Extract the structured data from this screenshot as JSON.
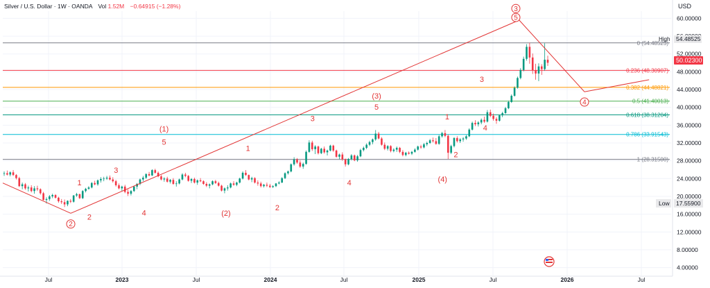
{
  "header": {
    "symbol": "Silver / U.S. Dollar · 1W · OANDA",
    "vol_label": "Vol",
    "vol_value": "1.52M",
    "change": "−0.64915 (−1.28%)"
  },
  "currency": "USD",
  "colors": {
    "up": "#089981",
    "down": "#f23645",
    "wave": "#e23434",
    "price_badge": "#f23645"
  },
  "chart_data": {
    "type": "candlestick",
    "title": "Silver / U.S. Dollar · 1W · OANDA",
    "x_ticks": [
      "Jul",
      "2023",
      "Jul",
      "2024",
      "Jul",
      "2025",
      "Jul",
      "2026",
      "Jul"
    ],
    "y_ticks": [
      "4.00000",
      "8.00000",
      "12.00000",
      "16.00000",
      "20.00000",
      "24.00000",
      "28.00000",
      "32.00000",
      "36.00000",
      "40.00000",
      "44.00000",
      "48.00000",
      "52.00000",
      "56.00000",
      "60.00000"
    ],
    "ylim": [
      3,
      61
    ],
    "last_price": "50.02300",
    "high": {
      "label": "High",
      "value": "54.48525"
    },
    "low": {
      "label": "Low",
      "value": "17.55900"
    },
    "fib_levels": [
      {
        "ratio": "0",
        "label": "0 (54.48525)",
        "value": 54.48525,
        "color": "#787b86"
      },
      {
        "ratio": "0.236",
        "label": "0.236 (48.30907)",
        "value": 48.30907,
        "color": "#f23645"
      },
      {
        "ratio": "0.382",
        "label": "0.382 (44.48821)",
        "value": 44.48821,
        "color": "#ff9800"
      },
      {
        "ratio": "0.5",
        "label": "0.5 (41.40013)",
        "value": 41.40013,
        "color": "#4caf50"
      },
      {
        "ratio": "0.618",
        "label": "0.618 (38.31204)",
        "value": 38.31204,
        "color": "#089981"
      },
      {
        "ratio": "0.786",
        "label": "0.786 (33.91543)",
        "value": 33.91543,
        "color": "#00bcd4"
      },
      {
        "ratio": "1",
        "label": "1 (28.31500)",
        "value": 28.315,
        "color": "#787b86"
      }
    ],
    "wave_labels": [
      {
        "text": "1",
        "kind": "plain",
        "t": 0.115,
        "price": 22.5
      },
      {
        "text": "2",
        "kind": "plain",
        "t": 0.13,
        "price": 14.8
      },
      {
        "text": "3",
        "kind": "plain",
        "t": 0.17,
        "price": 25.3
      },
      {
        "text": "4",
        "kind": "plain",
        "t": 0.212,
        "price": 15.7
      },
      {
        "text": "5",
        "kind": "plain",
        "t": 0.242,
        "price": 31.6
      },
      {
        "text": "(1)",
        "kind": "paren",
        "t": 0.242,
        "price": 34.6
      },
      {
        "text": "(2)",
        "kind": "paren",
        "t": 0.335,
        "price": 15.6
      },
      {
        "text": "1",
        "kind": "plain",
        "t": 0.368,
        "price": 30.2
      },
      {
        "text": "2",
        "kind": "plain",
        "t": 0.412,
        "price": 16.9
      },
      {
        "text": "3",
        "kind": "plain",
        "t": 0.465,
        "price": 36.9
      },
      {
        "text": "4",
        "kind": "plain",
        "t": 0.52,
        "price": 22.5
      },
      {
        "text": "(3)",
        "kind": "paren",
        "t": 0.561,
        "price": 42.0
      },
      {
        "text": "5",
        "kind": "plain",
        "t": 0.561,
        "price": 39.5
      },
      {
        "text": "(4)",
        "kind": "paren",
        "t": 0.66,
        "price": 23.3
      },
      {
        "text": "1",
        "kind": "plain",
        "t": 0.667,
        "price": 37.3
      },
      {
        "text": "2",
        "kind": "plain",
        "t": 0.68,
        "price": 28.8
      },
      {
        "text": "3",
        "kind": "plain",
        "t": 0.719,
        "price": 45.7
      },
      {
        "text": "4",
        "kind": "plain",
        "t": 0.724,
        "price": 34.8
      }
    ],
    "circled_labels": [
      {
        "text": "2",
        "t": 0.102,
        "price": 13.8
      },
      {
        "text": "3",
        "t": 0.77,
        "price": 62.2
      },
      {
        "text": "5",
        "t": 0.77,
        "price": 60.2
      },
      {
        "text": "4",
        "t": 0.873,
        "price": 41.2
      }
    ],
    "trendlines": [
      {
        "from": {
          "t": 0.0,
          "price": 23.0
        },
        "to": {
          "t": 0.102,
          "price": 16.2
        }
      },
      {
        "from": {
          "t": 0.102,
          "price": 16.2
        },
        "to": {
          "t": 0.775,
          "price": 59.6
        }
      },
      {
        "from": {
          "t": 0.775,
          "price": 59.6
        },
        "to": {
          "t": 0.873,
          "price": 43.5
        }
      },
      {
        "from": {
          "t": 0.873,
          "price": 43.5
        },
        "to": {
          "t": 0.97,
          "price": 46.2
        }
      }
    ],
    "ohlc_weekly": [
      [
        25.1,
        25.6,
        24.6,
        25.2
      ],
      [
        25.2,
        25.8,
        24.7,
        24.9
      ],
      [
        24.9,
        25.6,
        24.5,
        25.4
      ],
      [
        25.4,
        25.9,
        24.6,
        24.8
      ],
      [
        24.8,
        25.0,
        23.8,
        24.1
      ],
      [
        24.1,
        24.4,
        22.1,
        22.3
      ],
      [
        22.3,
        23.1,
        21.6,
        22.7
      ],
      [
        22.7,
        23.0,
        21.5,
        21.8
      ],
      [
        21.8,
        22.4,
        21.1,
        22.0
      ],
      [
        22.0,
        22.5,
        20.9,
        21.2
      ],
      [
        21.2,
        22.3,
        20.6,
        21.8
      ],
      [
        21.8,
        22.4,
        21.2,
        21.6
      ],
      [
        21.6,
        21.8,
        20.4,
        20.7
      ],
      [
        20.7,
        21.0,
        19.1,
        19.2
      ],
      [
        19.2,
        19.8,
        18.4,
        19.4
      ],
      [
        19.4,
        20.3,
        19.0,
        20.0
      ],
      [
        20.0,
        20.6,
        19.6,
        20.3
      ],
      [
        20.3,
        20.5,
        19.5,
        19.7
      ],
      [
        19.7,
        19.9,
        18.6,
        18.9
      ],
      [
        18.9,
        19.4,
        18.3,
        18.7
      ],
      [
        18.7,
        19.3,
        17.6,
        18.2
      ],
      [
        18.2,
        19.1,
        17.8,
        19.0
      ],
      [
        19.0,
        19.4,
        18.5,
        18.8
      ],
      [
        18.8,
        20.3,
        18.6,
        20.2
      ],
      [
        20.2,
        20.8,
        19.9,
        20.5
      ],
      [
        20.5,
        20.6,
        19.4,
        19.6
      ],
      [
        19.6,
        21.4,
        19.4,
        21.2
      ],
      [
        21.2,
        21.9,
        20.9,
        21.7
      ],
      [
        21.7,
        22.3,
        21.5,
        22.0
      ],
      [
        22.0,
        23.2,
        21.8,
        23.0
      ],
      [
        23.0,
        23.5,
        22.5,
        22.7
      ],
      [
        22.7,
        23.8,
        22.4,
        23.6
      ],
      [
        23.6,
        24.3,
        23.1,
        23.9
      ],
      [
        23.9,
        24.4,
        23.4,
        24.0
      ],
      [
        24.0,
        24.6,
        23.7,
        24.2
      ],
      [
        24.2,
        24.7,
        23.6,
        23.8
      ],
      [
        23.8,
        24.3,
        23.1,
        23.4
      ],
      [
        23.4,
        23.7,
        22.2,
        22.5
      ],
      [
        22.5,
        22.9,
        21.6,
        21.8
      ],
      [
        21.8,
        22.4,
        21.2,
        22.2
      ],
      [
        22.2,
        22.6,
        20.7,
        21.0
      ],
      [
        21.0,
        21.6,
        20.1,
        20.6
      ],
      [
        20.6,
        21.4,
        20.2,
        21.2
      ],
      [
        21.2,
        22.4,
        21.0,
        22.2
      ],
      [
        22.2,
        23.0,
        21.6,
        22.8
      ],
      [
        22.8,
        24.0,
        22.5,
        23.8
      ],
      [
        23.8,
        24.6,
        23.4,
        24.2
      ],
      [
        24.2,
        25.2,
        23.9,
        25.0
      ],
      [
        25.0,
        25.5,
        24.5,
        24.7
      ],
      [
        24.7,
        26.1,
        24.6,
        25.9
      ],
      [
        25.9,
        26.2,
        25.1,
        25.3
      ],
      [
        25.3,
        25.6,
        24.3,
        24.5
      ],
      [
        24.5,
        24.8,
        23.6,
        23.8
      ],
      [
        23.8,
        24.3,
        23.3,
        24.0
      ],
      [
        24.0,
        24.4,
        23.1,
        23.3
      ],
      [
        23.3,
        23.9,
        22.9,
        23.7
      ],
      [
        23.7,
        24.1,
        22.6,
        22.8
      ],
      [
        22.8,
        23.4,
        22.2,
        22.9
      ],
      [
        22.9,
        24.0,
        22.7,
        23.8
      ],
      [
        23.8,
        25.2,
        23.6,
        24.9
      ],
      [
        24.9,
        25.3,
        24.3,
        24.6
      ],
      [
        24.6,
        24.8,
        23.3,
        23.5
      ],
      [
        23.5,
        24.1,
        23.0,
        23.9
      ],
      [
        23.9,
        24.2,
        22.9,
        23.1
      ],
      [
        23.1,
        23.8,
        22.6,
        23.6
      ],
      [
        23.6,
        24.1,
        23.2,
        23.4
      ],
      [
        23.4,
        23.6,
        22.6,
        22.8
      ],
      [
        22.8,
        23.2,
        22.1,
        22.4
      ],
      [
        22.4,
        22.9,
        21.8,
        22.7
      ],
      [
        22.7,
        23.6,
        22.5,
        23.4
      ],
      [
        23.4,
        23.7,
        22.8,
        23.0
      ],
      [
        23.0,
        23.3,
        22.2,
        22.4
      ],
      [
        22.4,
        22.6,
        21.1,
        21.3
      ],
      [
        21.3,
        22.0,
        20.7,
        21.8
      ],
      [
        21.8,
        22.5,
        21.3,
        22.0
      ],
      [
        22.0,
        23.1,
        21.8,
        22.9
      ],
      [
        22.9,
        23.4,
        22.4,
        22.6
      ],
      [
        22.6,
        23.3,
        22.3,
        23.1
      ],
      [
        23.1,
        24.2,
        22.9,
        24.0
      ],
      [
        24.0,
        25.6,
        23.8,
        25.3
      ],
      [
        25.3,
        25.9,
        24.6,
        24.8
      ],
      [
        24.8,
        24.9,
        23.6,
        23.8
      ],
      [
        23.8,
        24.4,
        23.2,
        24.1
      ],
      [
        24.1,
        24.3,
        22.9,
        23.1
      ],
      [
        23.1,
        23.6,
        22.4,
        22.9
      ],
      [
        22.9,
        23.3,
        22.0,
        22.3
      ],
      [
        22.3,
        22.8,
        22.0,
        22.6
      ],
      [
        22.6,
        23.1,
        22.1,
        22.4
      ],
      [
        22.4,
        22.8,
        21.9,
        22.1
      ],
      [
        22.1,
        22.5,
        21.9,
        22.3
      ],
      [
        22.3,
        23.0,
        22.1,
        22.9
      ],
      [
        22.9,
        23.4,
        22.7,
        23.1
      ],
      [
        23.1,
        24.3,
        23.0,
        24.1
      ],
      [
        24.1,
        25.4,
        23.9,
        25.2
      ],
      [
        25.2,
        25.8,
        24.9,
        25.6
      ],
      [
        25.6,
        27.4,
        25.4,
        27.2
      ],
      [
        27.2,
        28.8,
        26.9,
        28.3
      ],
      [
        28.3,
        28.6,
        27.3,
        27.6
      ],
      [
        27.6,
        28.1,
        26.4,
        26.7
      ],
      [
        26.7,
        27.6,
        26.2,
        27.3
      ],
      [
        27.3,
        30.3,
        27.1,
        30.0
      ],
      [
        30.0,
        32.6,
        29.8,
        32.1
      ],
      [
        32.1,
        32.5,
        30.2,
        30.6
      ],
      [
        30.6,
        31.5,
        29.5,
        31.2
      ],
      [
        31.2,
        31.4,
        29.4,
        29.7
      ],
      [
        29.7,
        30.9,
        29.5,
        30.7
      ],
      [
        30.7,
        31.2,
        29.6,
        29.9
      ],
      [
        29.9,
        30.5,
        29.2,
        30.3
      ],
      [
        30.3,
        31.6,
        30.1,
        31.4
      ],
      [
        31.4,
        31.6,
        30.0,
        30.3
      ],
      [
        30.3,
        30.5,
        28.7,
        28.9
      ],
      [
        28.9,
        29.6,
        28.3,
        29.4
      ],
      [
        29.4,
        29.9,
        28.0,
        28.3
      ],
      [
        28.3,
        28.5,
        26.7,
        27.2
      ],
      [
        27.2,
        28.6,
        27.0,
        28.4
      ],
      [
        28.4,
        29.5,
        28.1,
        29.2
      ],
      [
        29.2,
        29.4,
        27.9,
        28.1
      ],
      [
        28.1,
        29.3,
        27.8,
        29.0
      ],
      [
        29.0,
        30.7,
        28.8,
        30.4
      ],
      [
        30.4,
        31.2,
        30.1,
        30.9
      ],
      [
        30.9,
        31.9,
        30.6,
        31.6
      ],
      [
        31.6,
        32.5,
        31.3,
        32.2
      ],
      [
        32.2,
        33.0,
        31.7,
        32.8
      ],
      [
        32.8,
        34.9,
        32.5,
        34.1
      ],
      [
        34.1,
        34.5,
        32.8,
        33.0
      ],
      [
        33.0,
        33.3,
        31.4,
        31.6
      ],
      [
        31.6,
        32.1,
        30.4,
        30.7
      ],
      [
        30.7,
        31.5,
        30.3,
        31.3
      ],
      [
        31.3,
        31.5,
        29.9,
        30.2
      ],
      [
        30.2,
        30.8,
        29.9,
        30.5
      ],
      [
        30.5,
        31.2,
        30.0,
        30.9
      ],
      [
        30.9,
        31.1,
        29.7,
        30.0
      ],
      [
        30.0,
        30.4,
        29.0,
        29.3
      ],
      [
        29.3,
        30.0,
        29.0,
        29.8
      ],
      [
        29.8,
        30.1,
        29.4,
        29.6
      ],
      [
        29.6,
        30.2,
        29.3,
        30.0
      ],
      [
        30.0,
        30.8,
        29.8,
        30.5
      ],
      [
        30.5,
        31.4,
        30.3,
        31.2
      ],
      [
        31.2,
        31.6,
        30.7,
        31.0
      ],
      [
        31.0,
        32.0,
        30.8,
        31.7
      ],
      [
        31.7,
        32.3,
        31.3,
        32.0
      ],
      [
        32.0,
        32.9,
        31.8,
        32.6
      ],
      [
        32.6,
        33.2,
        32.1,
        32.4
      ],
      [
        32.4,
        33.1,
        31.6,
        31.8
      ],
      [
        31.8,
        33.8,
        31.6,
        33.5
      ],
      [
        33.5,
        34.5,
        33.2,
        34.2
      ],
      [
        34.2,
        34.9,
        33.3,
        33.6
      ],
      [
        33.6,
        33.9,
        28.4,
        29.8
      ],
      [
        29.8,
        31.6,
        29.5,
        31.3
      ],
      [
        31.3,
        33.3,
        31.0,
        33.1
      ],
      [
        33.1,
        33.5,
        32.1,
        32.4
      ],
      [
        32.4,
        33.1,
        32.0,
        32.8
      ],
      [
        32.8,
        33.3,
        32.3,
        33.0
      ],
      [
        33.0,
        33.8,
        32.7,
        33.5
      ],
      [
        33.5,
        35.3,
        33.3,
        35.0
      ],
      [
        35.0,
        36.8,
        34.8,
        36.5
      ],
      [
        36.5,
        37.1,
        35.8,
        36.2
      ],
      [
        36.2,
        36.9,
        35.7,
        36.6
      ],
      [
        36.6,
        37.5,
        36.2,
        37.2
      ],
      [
        37.2,
        37.9,
        36.5,
        36.8
      ],
      [
        36.8,
        39.4,
        36.6,
        38.9
      ],
      [
        38.9,
        39.5,
        37.8,
        38.1
      ],
      [
        38.1,
        38.6,
        37.0,
        37.4
      ],
      [
        37.4,
        37.8,
        36.3,
        37.0
      ],
      [
        37.0,
        38.4,
        36.8,
        38.2
      ],
      [
        38.2,
        39.0,
        37.8,
        38.7
      ],
      [
        38.7,
        40.1,
        38.5,
        39.8
      ],
      [
        39.8,
        41.5,
        39.6,
        41.2
      ],
      [
        41.2,
        42.9,
        41.0,
        42.6
      ],
      [
        42.6,
        44.7,
        42.4,
        44.4
      ],
      [
        44.4,
        46.9,
        44.2,
        46.6
      ],
      [
        46.6,
        48.8,
        46.3,
        48.4
      ],
      [
        48.4,
        51.4,
        48.1,
        50.9
      ],
      [
        50.9,
        54.2,
        50.5,
        53.6
      ],
      [
        53.6,
        54.5,
        49.8,
        51.2
      ],
      [
        51.2,
        52.1,
        47.5,
        48.3
      ],
      [
        48.3,
        49.8,
        46.2,
        47.6
      ],
      [
        47.6,
        49.9,
        45.9,
        49.2
      ],
      [
        49.2,
        49.7,
        47.3,
        48.6
      ],
      [
        48.6,
        54.4,
        48.2,
        50.7
      ],
      [
        50.7,
        51.6,
        49.3,
        50.02
      ]
    ]
  }
}
